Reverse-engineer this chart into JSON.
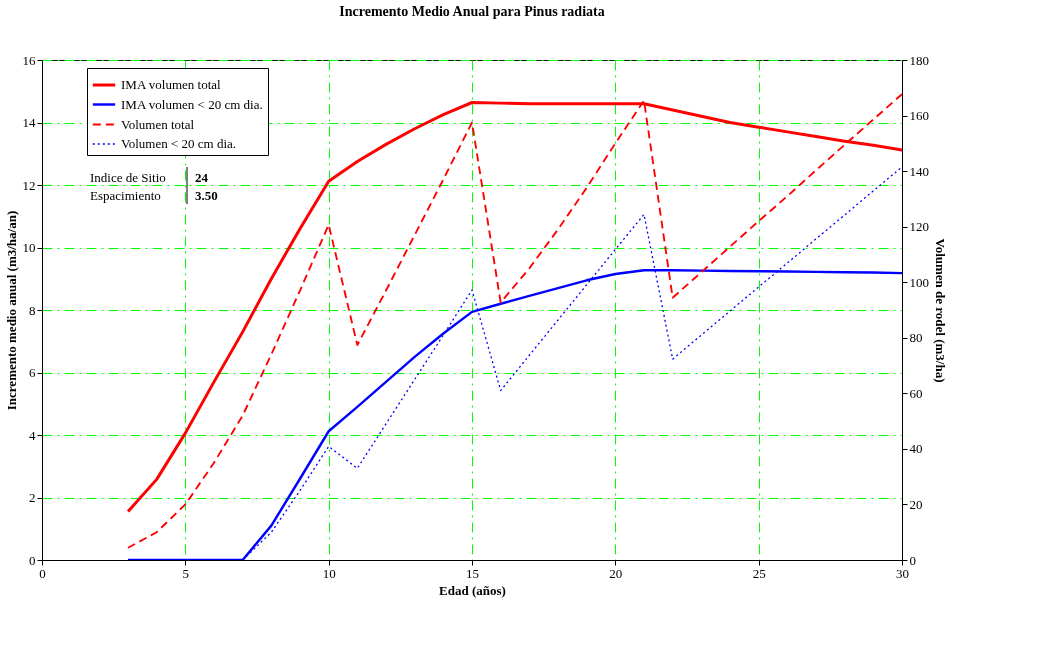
{
  "chart_data": {
    "type": "line",
    "title": "Incremento Medio Anual para Pinus radiata",
    "xlabel": "Edad (años)",
    "ylabel": "Incremento medio anual (m3/ha/an)",
    "y2label": "Volumen de rodel (m3/ha)",
    "x": [
      3,
      4,
      5,
      6,
      7,
      8,
      9,
      10,
      11,
      12,
      13,
      14,
      15,
      16,
      17,
      18,
      19,
      20,
      21,
      22,
      23,
      24,
      25,
      26,
      27,
      28,
      29,
      30
    ],
    "series": [
      {
        "name": "IMA volumen total",
        "color": "#ff0000",
        "line_style": "solid",
        "values": [
          1.55,
          2.58,
          4.06,
          5.7,
          7.3,
          9.0,
          10.6,
          12.12,
          12.75,
          13.3,
          13.8,
          14.25,
          14.64,
          14.62,
          14.6,
          14.6,
          14.6,
          14.6,
          14.6,
          14.4,
          14.2,
          14.0,
          13.85,
          13.7,
          13.55,
          13.4,
          13.27,
          13.12
        ]
      },
      {
        "name": "IMA volumen < 20 cm dia.",
        "color": "#0000ff",
        "line_style": "solid",
        "values": [
          0,
          0,
          0,
          0,
          0,
          1.1,
          2.6,
          4.12,
          4.9,
          5.7,
          6.5,
          7.25,
          7.94,
          8.2,
          8.45,
          8.7,
          8.95,
          9.15,
          9.27,
          9.27,
          9.26,
          9.25,
          9.24,
          9.23,
          9.22,
          9.21,
          9.2,
          9.18
        ]
      },
      {
        "name": "Volumen total",
        "color": "#ff0000",
        "line_style": "dashed",
        "axis": "y2",
        "values": [
          4.4,
          10,
          20,
          35,
          52,
          74,
          97,
          120.7,
          77.4,
          97,
          117,
          137,
          157.5,
          92.7,
          105,
          119,
          134,
          150,
          165.4,
          94.4,
          103.6,
          112.8,
          122,
          131,
          140.3,
          149.5,
          158.6,
          167.7
        ]
      },
      {
        "name": "Volumen < 20 cm dia.",
        "color": "#0000ff",
        "line_style": "dotted",
        "axis": "y2",
        "values": [
          0,
          0,
          0,
          0,
          0,
          10,
          25,
          40.9,
          33,
          49,
          65,
          81,
          97.2,
          61,
          73.7,
          86.4,
          99.1,
          111.8,
          124.4,
          72.3,
          81,
          89.6,
          98.3,
          106.9,
          115.6,
          124.2,
          132.9,
          141.5
        ]
      }
    ],
    "xlim": [
      0,
      30
    ],
    "xticks": [
      0,
      5,
      10,
      15,
      20,
      25,
      30
    ],
    "ylim": [
      0,
      16
    ],
    "yticks": [
      0,
      2,
      4,
      6,
      8,
      10,
      12,
      14,
      16
    ],
    "y2lim": [
      0,
      180
    ],
    "y2ticks": [
      0,
      20,
      40,
      60,
      80,
      100,
      120,
      140,
      160,
      180
    ],
    "grid": true,
    "legend": "top left",
    "annotations": [
      "Indice de Sitio",
      "24",
      "Espacimiento",
      "3.50"
    ]
  }
}
